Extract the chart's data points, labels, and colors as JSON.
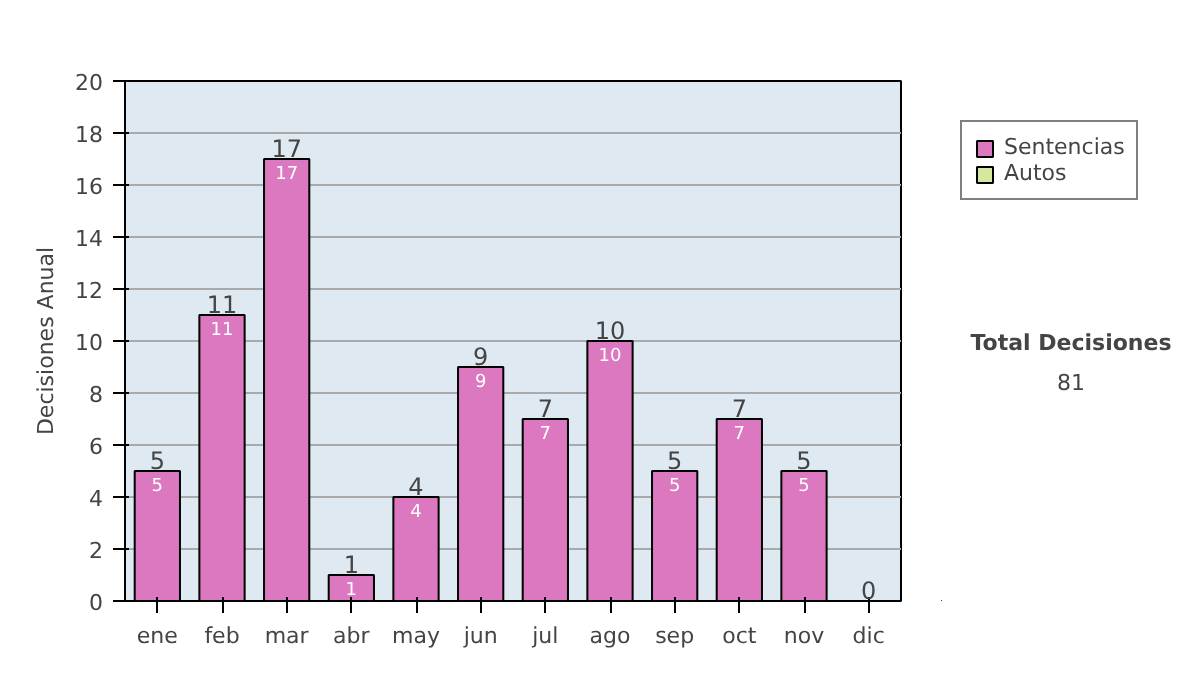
{
  "chart_data": {
    "type": "bar",
    "stacked": true,
    "ylabel": "Decisiones Anual",
    "categories": [
      "ene",
      "feb",
      "mar",
      "abr",
      "may",
      "jun",
      "jul",
      "ago",
      "sep",
      "oct",
      "nov",
      "dic"
    ],
    "series": [
      {
        "name": "Sentencias",
        "color": "#dc78c0",
        "values": [
          5,
          11,
          17,
          1,
          4,
          9,
          7,
          10,
          5,
          7,
          5,
          0
        ],
        "value_labels": [
          "5",
          "11",
          "17",
          "1",
          "4",
          "9",
          "7",
          "10",
          "5",
          "7",
          "5",
          null
        ]
      },
      {
        "name": "Autos",
        "color": "#d4e8a0",
        "values": [
          0,
          0,
          0,
          0,
          0,
          0,
          0,
          0,
          0,
          0,
          0,
          0
        ]
      }
    ],
    "totals": [
      "5",
      "11",
      "17",
      "1",
      "4",
      "9",
      "7",
      "10",
      "5",
      "7",
      "5",
      "0"
    ],
    "ylim": [
      0,
      20
    ],
    "yticks": [
      0,
      2,
      4,
      6,
      8,
      10,
      12,
      14,
      16,
      18,
      20
    ],
    "grid": "y",
    "legend": "right",
    "annotations": [
      "Total Decisiones",
      "81"
    ]
  }
}
